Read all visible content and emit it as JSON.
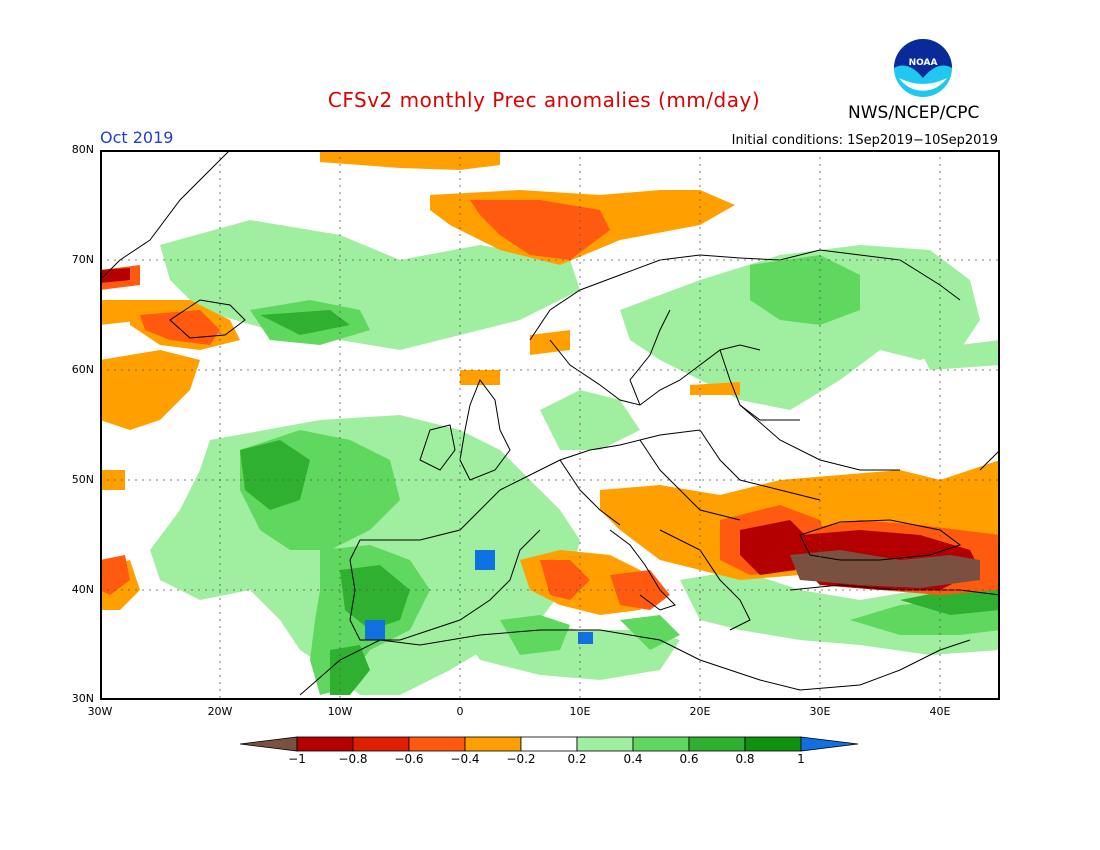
{
  "header": {
    "title": "CFSv2 monthly Prec anomalies (mm/day)",
    "organization": "NWS/NCEP/CPC",
    "period": "Oct 2019",
    "initial_conditions": "Initial conditions: 1Sep2019−10Sep2019",
    "logo_text": "NOAA"
  },
  "map": {
    "region": "Europe",
    "lat_labels": [
      "80N",
      "70N",
      "60N",
      "50N",
      "40N",
      "30N"
    ],
    "lon_labels": [
      "30W",
      "20W",
      "10W",
      "0",
      "10E",
      "20E",
      "30E",
      "40E"
    ],
    "gridlines": "dotted",
    "anomaly_regions": [
      {
        "area": "Norwegian Sea / Barents",
        "anomaly": "dry",
        "level": -0.5
      },
      {
        "area": "Black Sea / Turkey",
        "anomaly": "dry",
        "level": -1.0
      },
      {
        "area": "Romania / Balkans",
        "anomaly": "dry",
        "level": -0.7
      },
      {
        "area": "Italy / Tyrrhenian",
        "anomaly": "dry",
        "level": -0.5
      },
      {
        "area": "Iberian Peninsula",
        "anomaly": "wet",
        "level": 0.7
      },
      {
        "area": "Eastern Atlantic / Ireland",
        "anomaly": "wet",
        "level": 0.6
      },
      {
        "area": "Scandinavia / NW Russia",
        "anomaly": "wet",
        "level": 0.4
      },
      {
        "area": "North Africa",
        "anomaly": "wet",
        "level": 0.5
      }
    ]
  },
  "colorbar": {
    "labels": [
      "−1",
      "−0.8",
      "−0.6",
      "−0.4",
      "−0.2",
      "0.2",
      "0.4",
      "0.6",
      "0.8",
      "1"
    ],
    "colors": [
      "#7a5040",
      "#b40000",
      "#e02000",
      "#ff5a10",
      "#ffa000",
      "#ffffff",
      "#a0eea0",
      "#60d860",
      "#30b030",
      "#109010",
      "#1070e0"
    ]
  }
}
